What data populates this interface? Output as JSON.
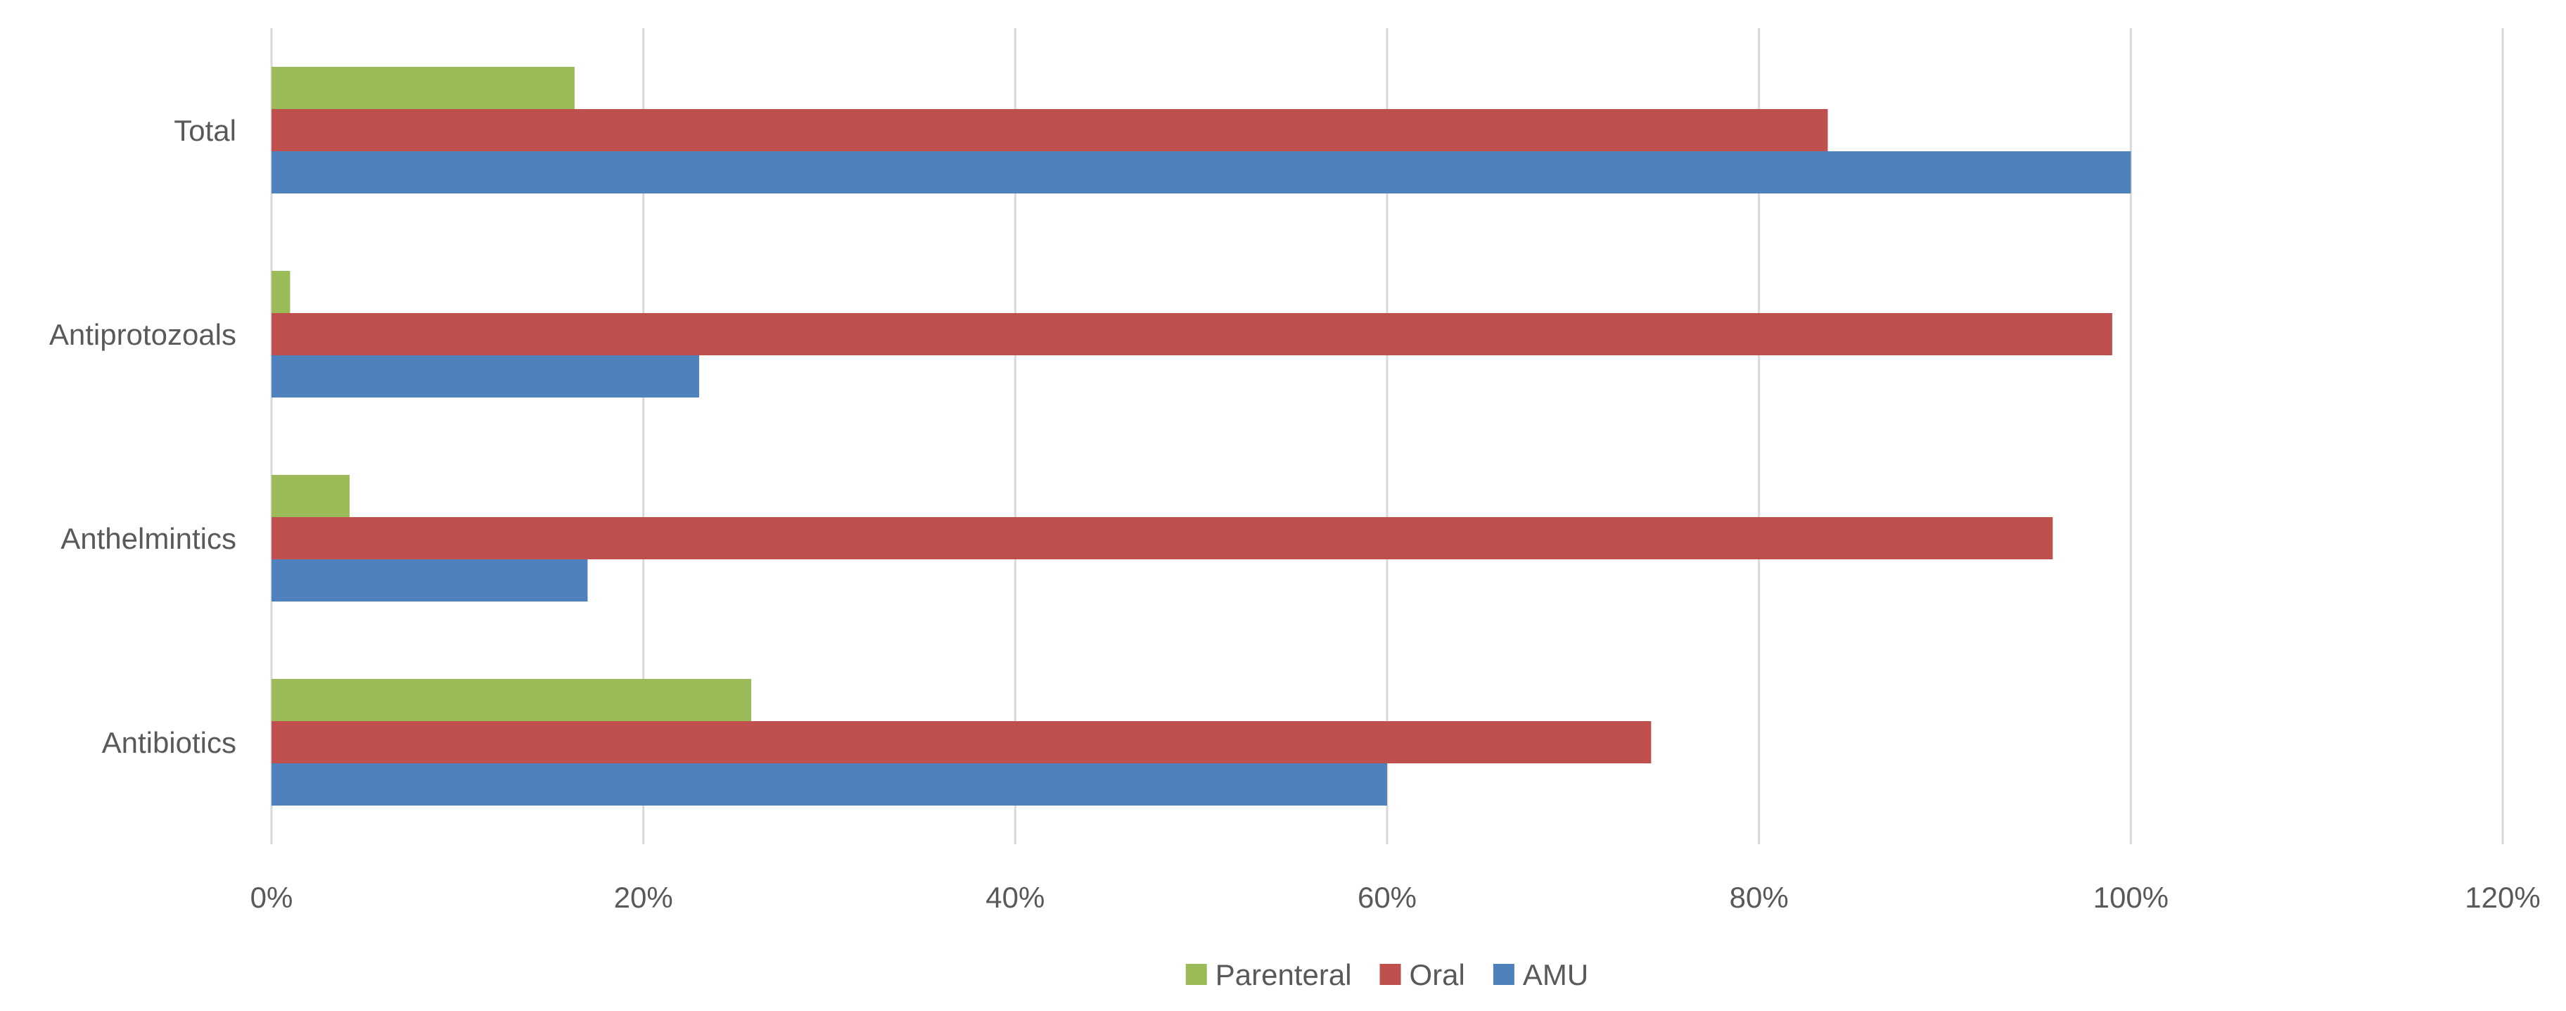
{
  "chart_data": {
    "type": "bar",
    "orientation": "horizontal",
    "title": "",
    "xlabel": "",
    "ylabel": "",
    "categories": [
      "Antibiotics",
      "Anthelmintics",
      "Antiprotozoals",
      "Total"
    ],
    "series": [
      {
        "name": "Parenteral",
        "color": "#9BBB59",
        "values": [
          0.258,
          0.042,
          0.01,
          0.163
        ]
      },
      {
        "name": "Oral",
        "color": "#C0504D",
        "values": [
          0.742,
          0.958,
          0.99,
          0.837
        ]
      },
      {
        "name": "AMU",
        "color": "#4F81BD",
        "values": [
          0.6,
          0.17,
          0.23,
          1.0
        ]
      }
    ],
    "xlim": [
      0,
      1.2
    ],
    "x_ticks": [
      "0%",
      "20%",
      "40%",
      "60%",
      "80%",
      "100%",
      "120%"
    ],
    "grid": "vertical",
    "legend_position": "bottom",
    "legend": [
      "Parenteral",
      "Oral",
      "AMU"
    ]
  }
}
